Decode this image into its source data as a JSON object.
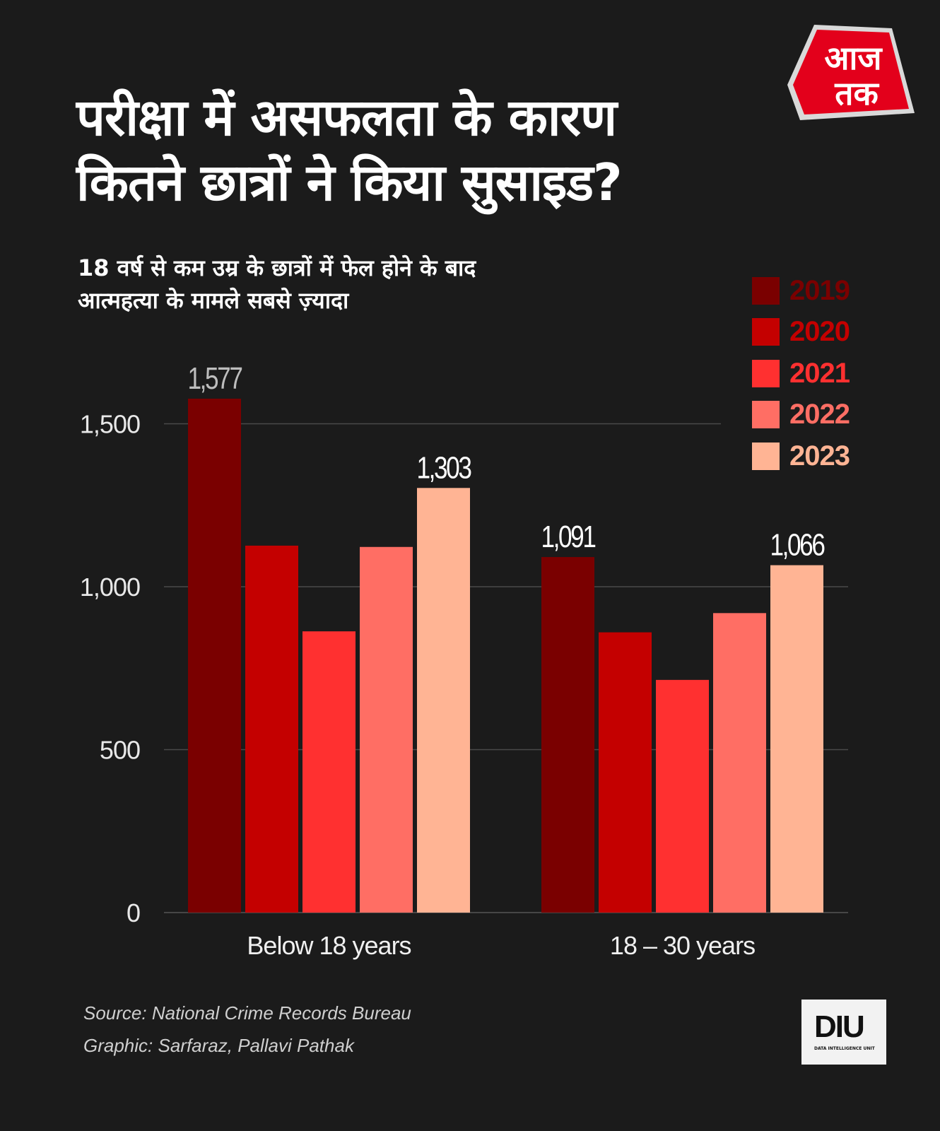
{
  "header": {
    "title_lines": [
      "परीक्षा में असफलता के कारण",
      "कितने छात्रों ने किया सुसाइड?"
    ],
    "subtitle_lines": [
      "18 वर्ष से कम उम्र के छात्रों में फेल होने के बाद",
      "आत्महत्या के मामले सबसे ज़्यादा"
    ],
    "logo_text": "आज तक"
  },
  "chart_data": {
    "type": "bar",
    "title": "परीक्षा में असफलता के कारण कितने छात्रों ने किया सुसाइड?",
    "subtitle": "18 वर्ष से कम उम्र के छात्रों में फेल होने के बाद आत्महत्या के मामले सबसे ज़्यादा",
    "categories": [
      "Below 18 years",
      "18 – 30 years"
    ],
    "series": [
      {
        "name": "2019",
        "color": "#7a0000",
        "values": [
          1577,
          1091
        ]
      },
      {
        "name": "2020",
        "color": "#c40000",
        "values": [
          1126,
          860
        ]
      },
      {
        "name": "2021",
        "color": "#ff3030",
        "values": [
          863,
          714
        ]
      },
      {
        "name": "2022",
        "color": "#ff6e64",
        "values": [
          1122,
          919
        ]
      },
      {
        "name": "2023",
        "color": "#ffb494",
        "values": [
          1303,
          1066
        ]
      }
    ],
    "data_labels": [
      {
        "series": "2019",
        "category": "Below 18 years",
        "text": "1,577"
      },
      {
        "series": "2023",
        "category": "Below 18 years",
        "text": "1,303"
      },
      {
        "series": "2019",
        "category": "18 – 30 years",
        "text": "1,091"
      },
      {
        "series": "2023",
        "category": "18 – 30 years",
        "text": "1,066"
      }
    ],
    "yticks": [
      0,
      500,
      1000,
      1500
    ],
    "ytick_labels": [
      "0",
      "500",
      "1,000",
      "1,500"
    ],
    "ylim": [
      0,
      1650
    ],
    "grid": true,
    "legend_placement": "top-right",
    "xlabel": "",
    "ylabel": ""
  },
  "footer": {
    "source": "Source: National Crime Records Bureau",
    "graphic": "Graphic:  Sarfaraz, Pallavi Pathak",
    "diu_logo": "DIU",
    "diu_sub": "DATA INTELLIGENCE UNIT"
  }
}
